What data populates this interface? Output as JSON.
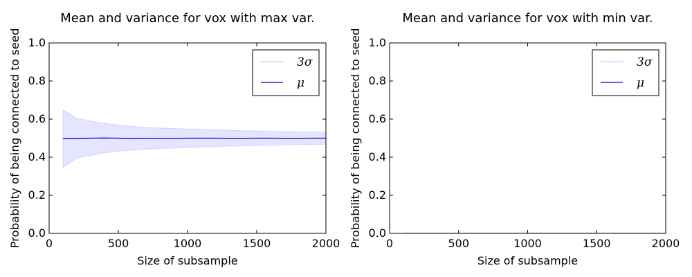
{
  "chart_data": [
    {
      "type": "line",
      "title": "Mean and variance for vox with max var.",
      "xlabel": "Size of subsample",
      "ylabel": "Probability of being connected to seed",
      "xlim": [
        0,
        2000
      ],
      "ylim": [
        0,
        1.0
      ],
      "xticks": [
        "0",
        "500",
        "1000",
        "1500",
        "2000"
      ],
      "yticks": [
        "0.0",
        "0.2",
        "0.4",
        "0.6",
        "0.8",
        "1.0"
      ],
      "grid": false,
      "legend": {
        "placement": "top-right",
        "entries": [
          "3σ",
          "μ"
        ]
      },
      "x": [
        100,
        200,
        300,
        400,
        500,
        600,
        700,
        800,
        900,
        1000,
        1100,
        1200,
        1300,
        1400,
        1500,
        1600,
        1700,
        1800,
        1900,
        2000
      ],
      "series": [
        {
          "name": "μ",
          "kind": "line",
          "color": "#0000cc",
          "values": [
            0.497,
            0.498,
            0.5,
            0.501,
            0.5,
            0.498,
            0.499,
            0.499,
            0.499,
            0.5,
            0.5,
            0.5,
            0.499,
            0.499,
            0.5,
            0.5,
            0.499,
            0.499,
            0.5,
            0.5
          ]
        },
        {
          "name": "3σ",
          "kind": "band",
          "color": "#aaaaff",
          "upper": [
            0.648,
            0.605,
            0.59,
            0.578,
            0.568,
            0.562,
            0.556,
            0.553,
            0.551,
            0.548,
            0.546,
            0.544,
            0.541,
            0.539,
            0.538,
            0.536,
            0.535,
            0.533,
            0.532,
            0.531
          ],
          "lower": [
            0.347,
            0.395,
            0.41,
            0.423,
            0.432,
            0.437,
            0.443,
            0.446,
            0.448,
            0.451,
            0.454,
            0.456,
            0.458,
            0.46,
            0.462,
            0.463,
            0.464,
            0.466,
            0.467,
            0.468
          ]
        }
      ]
    },
    {
      "type": "line",
      "title": "Mean and variance for vox with min var.",
      "xlabel": "Size of subsample",
      "ylabel": "Probability of being connected to seed",
      "xlim": [
        0,
        2000
      ],
      "ylim": [
        0,
        1.0
      ],
      "xticks": [
        "0",
        "500",
        "1000",
        "1500",
        "2000"
      ],
      "yticks": [
        "0.0",
        "0.2",
        "0.4",
        "0.6",
        "0.8",
        "1.0"
      ],
      "grid": false,
      "legend": {
        "placement": "top-right",
        "entries": [
          "3σ",
          "μ"
        ]
      },
      "x": [
        100,
        200,
        300,
        400,
        500,
        600,
        700,
        800,
        900,
        1000,
        1100,
        1200,
        1300,
        1400,
        1500,
        1600,
        1700,
        1800,
        1900,
        2000
      ],
      "series": [
        {
          "name": "μ",
          "kind": "line",
          "color": "#0000cc",
          "values": [
            0,
            0,
            0,
            0,
            0,
            0,
            0,
            0,
            0,
            0,
            0,
            0,
            0,
            0,
            0,
            0,
            0,
            0,
            0,
            0
          ]
        },
        {
          "name": "3σ",
          "kind": "band",
          "color": "#aaaaff",
          "upper": [
            0,
            0,
            0,
            0,
            0,
            0,
            0,
            0,
            0,
            0,
            0,
            0,
            0,
            0,
            0,
            0,
            0,
            0,
            0,
            0
          ],
          "lower": [
            0,
            0,
            0,
            0,
            0,
            0,
            0,
            0,
            0,
            0,
            0,
            0,
            0,
            0,
            0,
            0,
            0,
            0,
            0,
            0
          ]
        }
      ]
    }
  ]
}
